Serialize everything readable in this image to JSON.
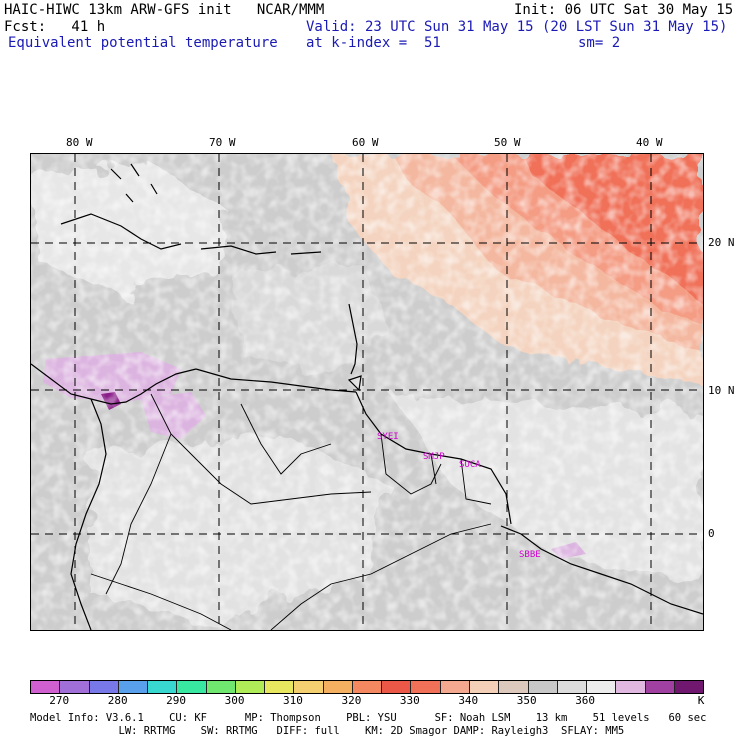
{
  "header": {
    "title_left": "HAIC-HIWC 13km ARW-GFS init   NCAR/MMM",
    "init": "Init: 06 UTC Sat 30 May 15",
    "fcst": "Fcst:   41 h",
    "valid": "Valid: 23 UTC Sun 31 May 15 (20 LST Sun 31 May 15)",
    "field": "Equivalent potential temperature",
    "level": "at k-index =  51",
    "smoothing": "sm= 2"
  },
  "map": {
    "longitude_labels": [
      "80 W",
      "70 W",
      "60 W",
      "50 W",
      "40 W"
    ],
    "latitude_labels": [
      "20 N",
      "10 N",
      "0"
    ],
    "stations": [
      "SYEI",
      "SMJP",
      "SOCA",
      "SBBE"
    ]
  },
  "colorbar": {
    "colors": [
      "#d060d0",
      "#a070d8",
      "#7878e8",
      "#58a0ec",
      "#38d8d0",
      "#38e8a0",
      "#70e870",
      "#b0ec58",
      "#e8e860",
      "#f4d070",
      "#f4b060",
      "#f48860",
      "#ec5848",
      "#f07058",
      "#f4a890",
      "#f4d0b8",
      "#dcc8bc",
      "#c8c8c8",
      "#dcdcdc",
      "#ececec",
      "#e0b8e0",
      "#a040a0",
      "#701870"
    ],
    "tick_labels": [
      "270",
      "280",
      "290",
      "300",
      "310",
      "320",
      "330",
      "340",
      "350",
      "360"
    ],
    "unit": "K"
  },
  "footer": {
    "line1": "Model Info: V3.6.1    CU: KF      MP: Thompson    PBL: YSU      SF: Noah LSM    13 km    51 levels   60 sec",
    "line2": "              LW: RRTMG    SW: RRTMG   DIFF: full    KM: 2D Smagor DAMP: Rayleigh3  SFLAY: MM5"
  }
}
